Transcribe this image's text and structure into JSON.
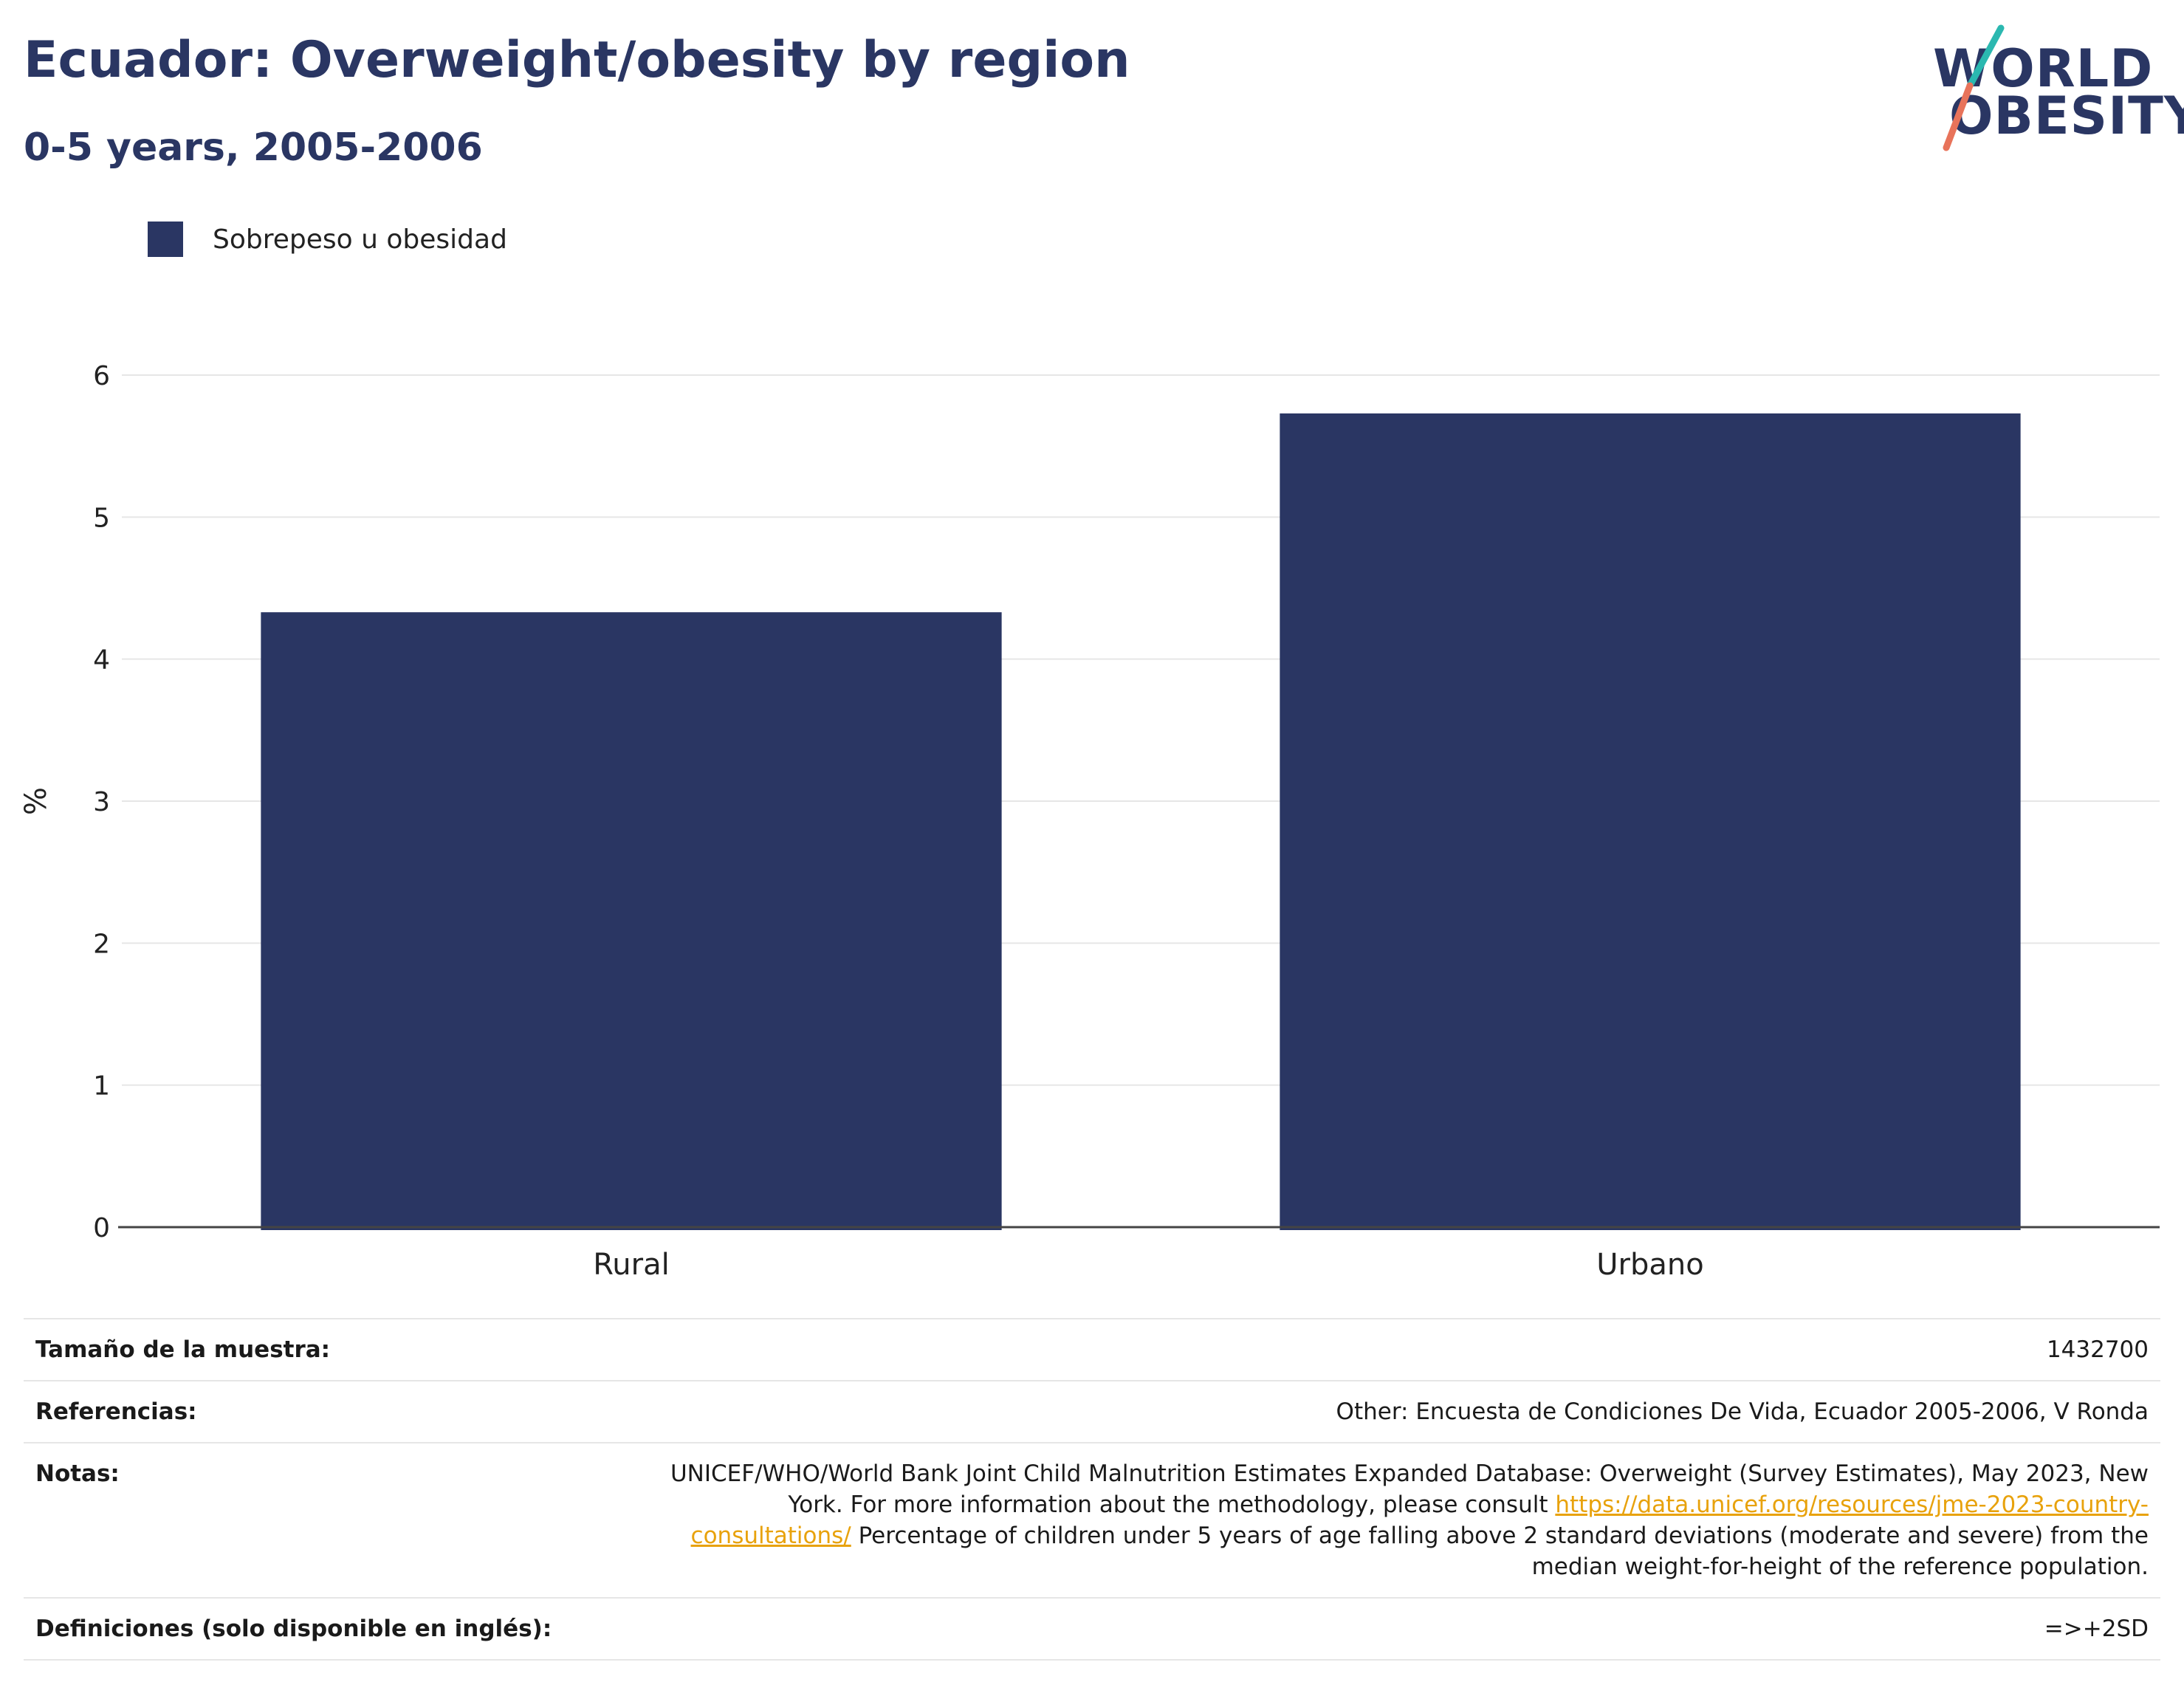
{
  "header": {
    "title": "Ecuador: Overweight/obesity by region",
    "subtitle": "0-5 years, 2005-2006"
  },
  "logo": {
    "line1": "WORLD",
    "line2": "OBESITY",
    "accent_teal": "#2bb8b0",
    "accent_coral": "#e8735a"
  },
  "legend": {
    "label": "Sobrepeso u obesidad",
    "color": "#2a3663"
  },
  "chart_data": {
    "type": "bar",
    "categories": [
      "Rural",
      "Urbano"
    ],
    "series": [
      {
        "name": "Sobrepeso u obesidad",
        "values": [
          4.33,
          5.73
        ],
        "color": "#2a3663"
      }
    ],
    "ylabel": "%",
    "ylim": [
      0,
      6
    ],
    "yticks": [
      0,
      1,
      2,
      3,
      4,
      5,
      6
    ],
    "grid": true
  },
  "table": {
    "sample_label": "Tamaño de la muestra:",
    "sample_value": "1432700",
    "refs_label": "Referencias:",
    "refs_value": "Other: Encuesta de Condiciones De Vida, Ecuador 2005-2006, V Ronda",
    "notes_label": "Notas:",
    "notes_text1": "UNICEF/WHO/World Bank Joint Child Malnutrition Estimates Expanded Database: Overweight (Survey Estimates), May 2023, New York. For more information about the methodology, please consult ",
    "notes_link": "https://data.unicef.org/resources/jme-2023-country-consultations/",
    "notes_text2": " Percentage of children under 5 years of age falling above 2 standard deviations (moderate and severe) from the median weight-for-height of the reference population.",
    "defs_label": "Definiciones (solo disponible en inglés):",
    "defs_value": "=>+2SD"
  }
}
